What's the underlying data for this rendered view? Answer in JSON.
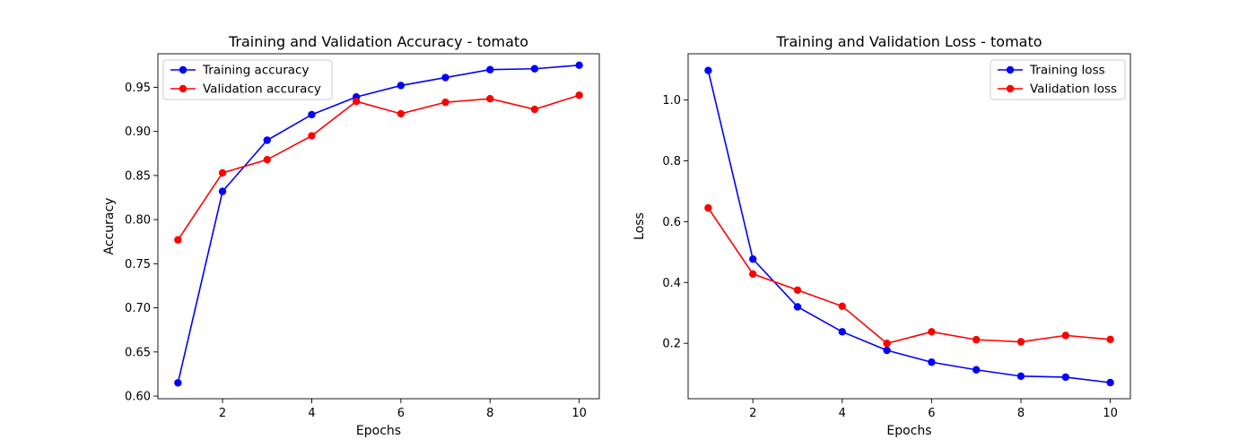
{
  "chart_data": [
    {
      "type": "line",
      "title": "Training and Validation Accuracy - tomato",
      "xlabel": "Epochs",
      "ylabel": "Accuracy",
      "xlim": [
        0.55,
        10.45
      ],
      "ylim": [
        0.597,
        0.988
      ],
      "xticks": [
        2,
        4,
        6,
        8,
        10
      ],
      "yticks": [
        0.6,
        0.65,
        0.7,
        0.75,
        0.8,
        0.85,
        0.9,
        0.95
      ],
      "ytick_decimals": 2,
      "grid": false,
      "legend_position": "upper-left",
      "x": [
        1,
        2,
        3,
        4,
        5,
        6,
        7,
        8,
        9,
        10
      ],
      "series": [
        {
          "name": "Training accuracy",
          "color": "#0000ff",
          "values": [
            0.615,
            0.832,
            0.89,
            0.919,
            0.939,
            0.952,
            0.961,
            0.97,
            0.971,
            0.975
          ]
        },
        {
          "name": "Validation accuracy",
          "color": "#ff0000",
          "values": [
            0.777,
            0.853,
            0.868,
            0.895,
            0.934,
            0.92,
            0.933,
            0.937,
            0.925,
            0.941
          ]
        }
      ]
    },
    {
      "type": "line",
      "title": "Training and Validation Loss - tomato",
      "xlabel": "Epochs",
      "ylabel": "Loss",
      "xlim": [
        0.55,
        10.45
      ],
      "ylim": [
        0.018,
        1.152
      ],
      "xticks": [
        2,
        4,
        6,
        8,
        10
      ],
      "yticks": [
        0.2,
        0.4,
        0.6,
        0.8,
        1.0
      ],
      "ytick_decimals": 1,
      "grid": false,
      "legend_position": "upper-right",
      "x": [
        1,
        2,
        3,
        4,
        5,
        6,
        7,
        8,
        9,
        10
      ],
      "series": [
        {
          "name": "Training loss",
          "color": "#0000ff",
          "values": [
            1.097,
            0.477,
            0.32,
            0.238,
            0.177,
            0.138,
            0.113,
            0.092,
            0.089,
            0.071
          ]
        },
        {
          "name": "Validation loss",
          "color": "#ff0000",
          "values": [
            0.645,
            0.428,
            0.375,
            0.322,
            0.2,
            0.238,
            0.212,
            0.205,
            0.226,
            0.213
          ]
        }
      ]
    }
  ]
}
